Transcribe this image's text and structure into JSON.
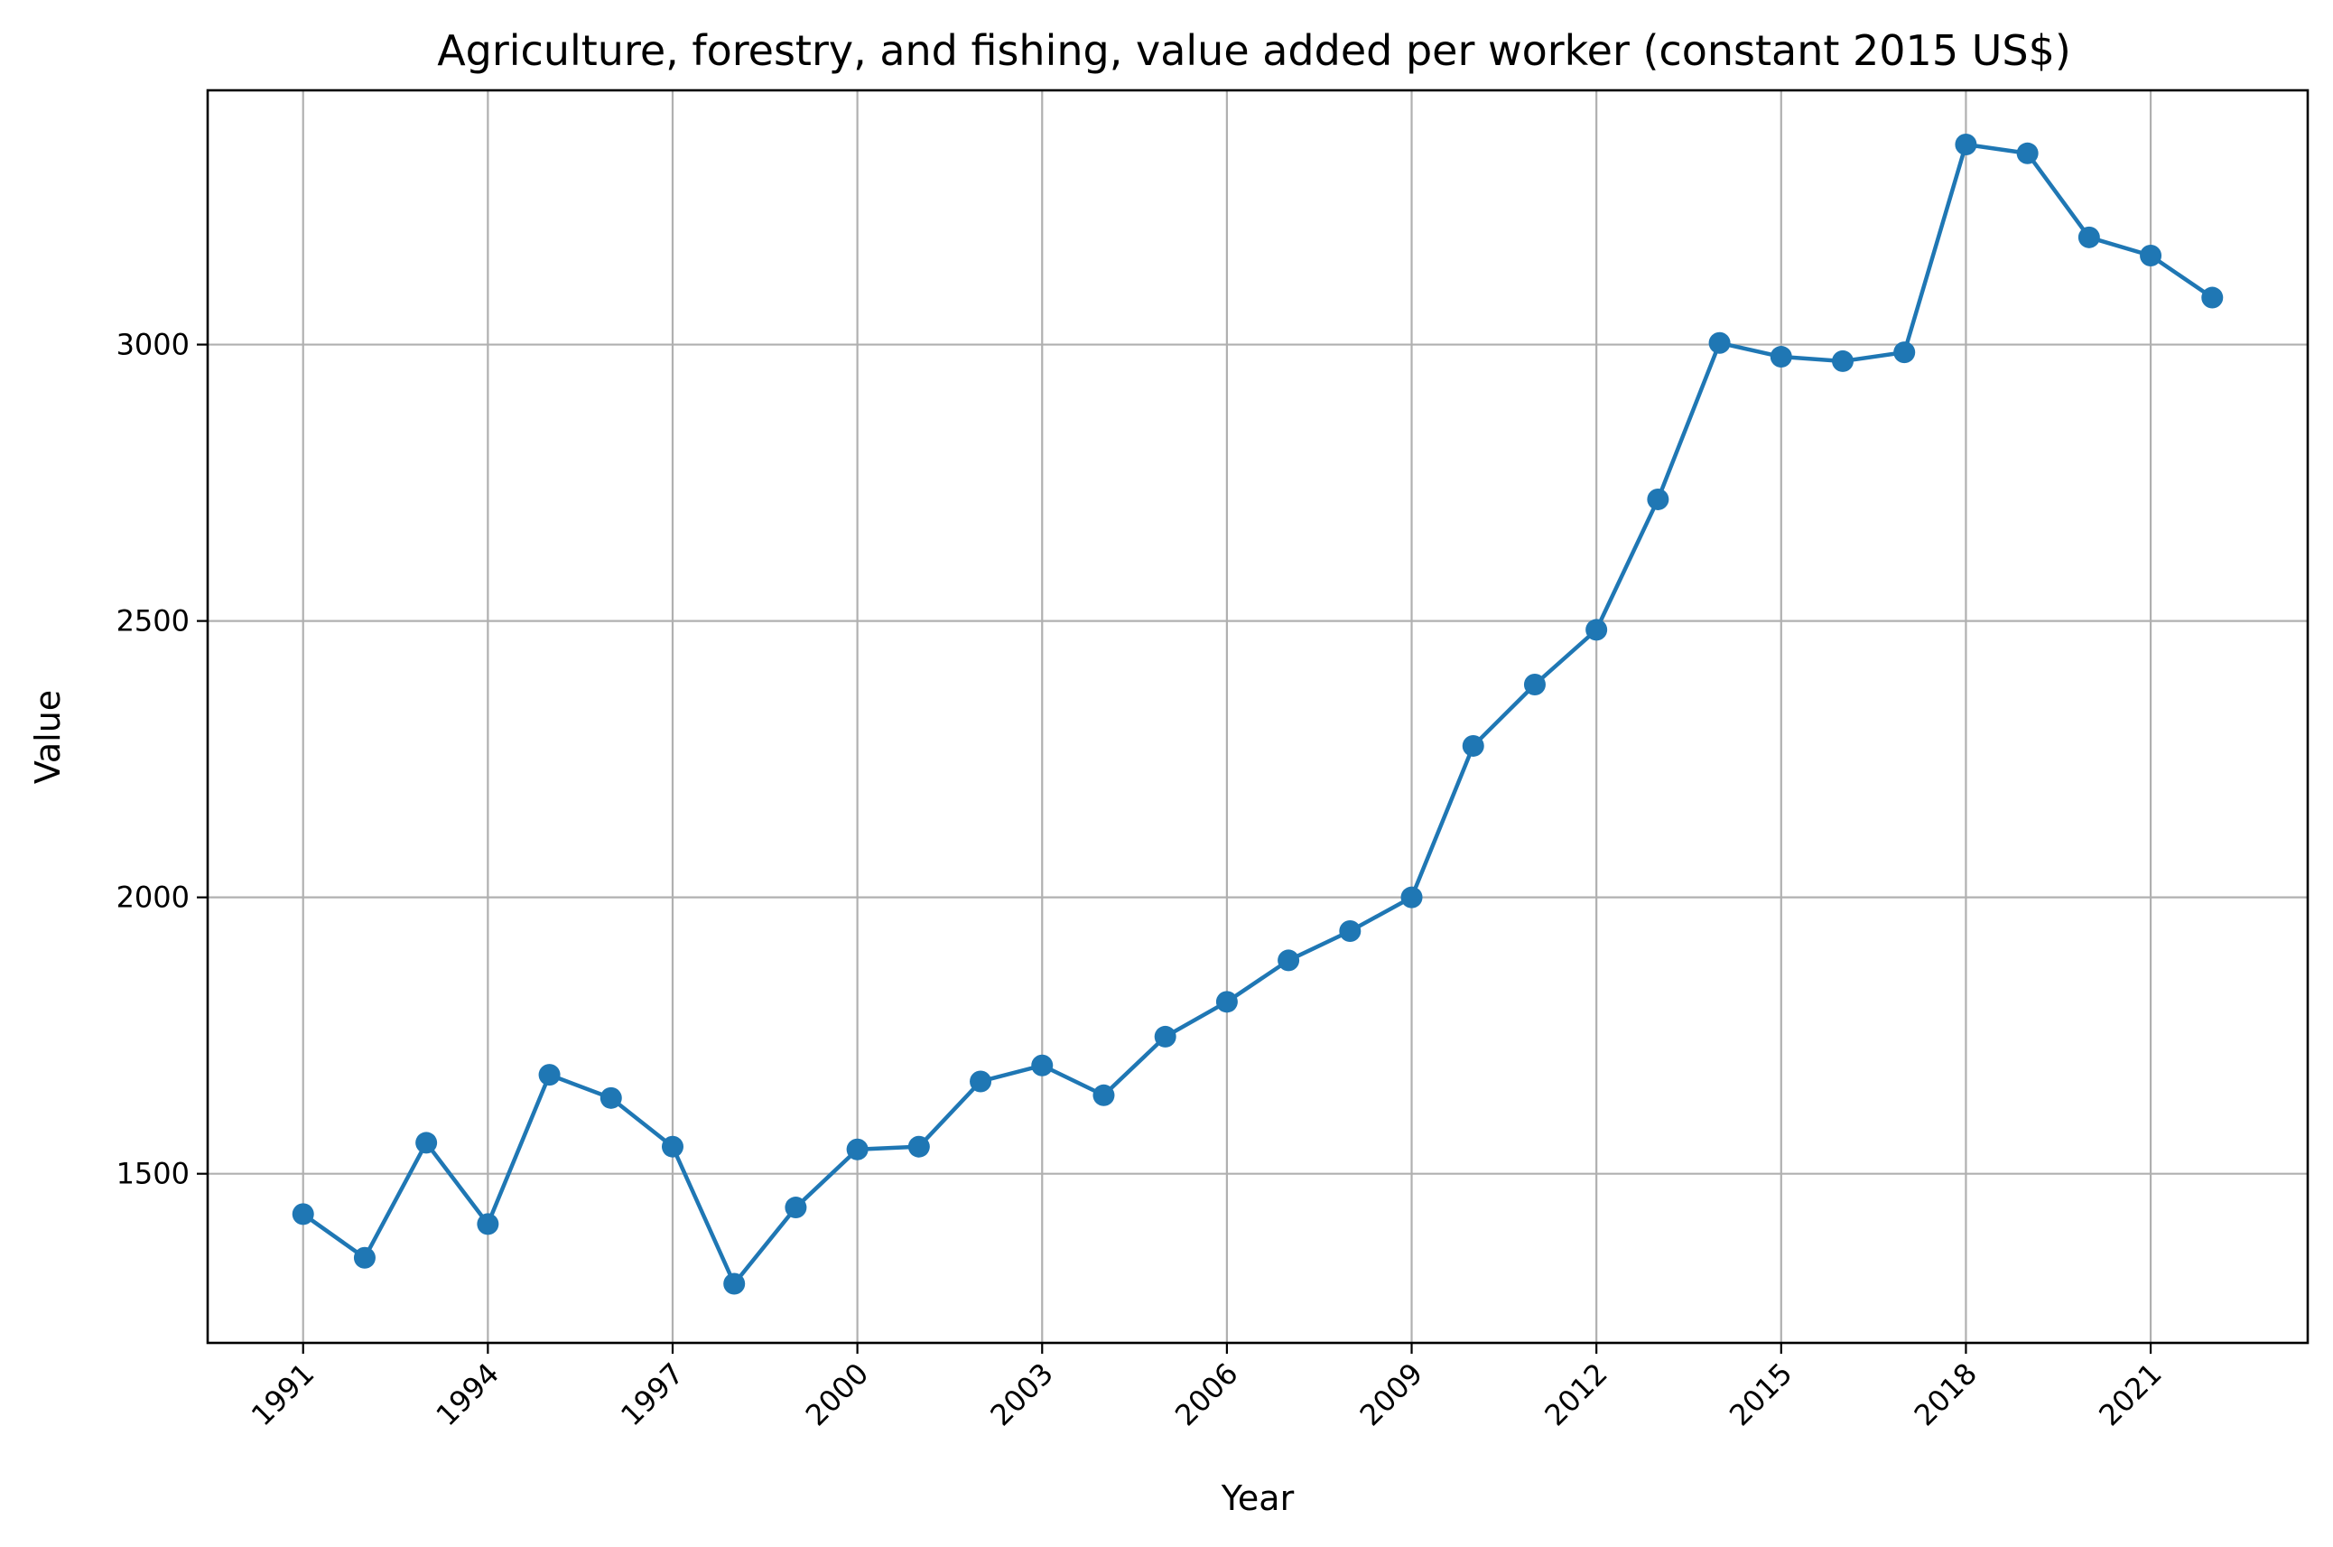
{
  "colors": {
    "series": "#1f77b4",
    "grid": "#b0b0b0",
    "axis": "#000000",
    "background": "#ffffff"
  },
  "chart_data": {
    "type": "line",
    "title": "Agriculture, forestry, and fishing, value added per worker (constant 2015 US$)",
    "xlabel": "Year",
    "ylabel": "Value",
    "grid": true,
    "marker": "circle",
    "xlim": [
      1989.45,
      2023.55
    ],
    "ylim": [
      1194,
      3460
    ],
    "xticks": [
      "1991",
      "1994",
      "1997",
      "2000",
      "2003",
      "2006",
      "2009",
      "2012",
      "2015",
      "2018",
      "2021"
    ],
    "yticks": [
      "1500",
      "2000",
      "2500",
      "3000"
    ],
    "x": [
      1991,
      1992,
      1993,
      1994,
      1995,
      1996,
      1997,
      1998,
      1999,
      2000,
      2001,
      2002,
      2003,
      2004,
      2005,
      2006,
      2007,
      2008,
      2009,
      2010,
      2011,
      2012,
      2013,
      2014,
      2015,
      2016,
      2017,
      2018,
      2019,
      2020,
      2021,
      2022
    ],
    "series": [
      {
        "values": [
          1427,
          1348,
          1556,
          1409,
          1679,
          1637,
          1549,
          1301,
          1439,
          1544,
          1549,
          1667,
          1696,
          1642,
          1748,
          1811,
          1886,
          1939,
          2000,
          2274,
          2385,
          2484,
          2720,
          3003,
          2978,
          2970,
          2986,
          3362,
          3346,
          3194,
          3161,
          3085
        ]
      }
    ]
  }
}
